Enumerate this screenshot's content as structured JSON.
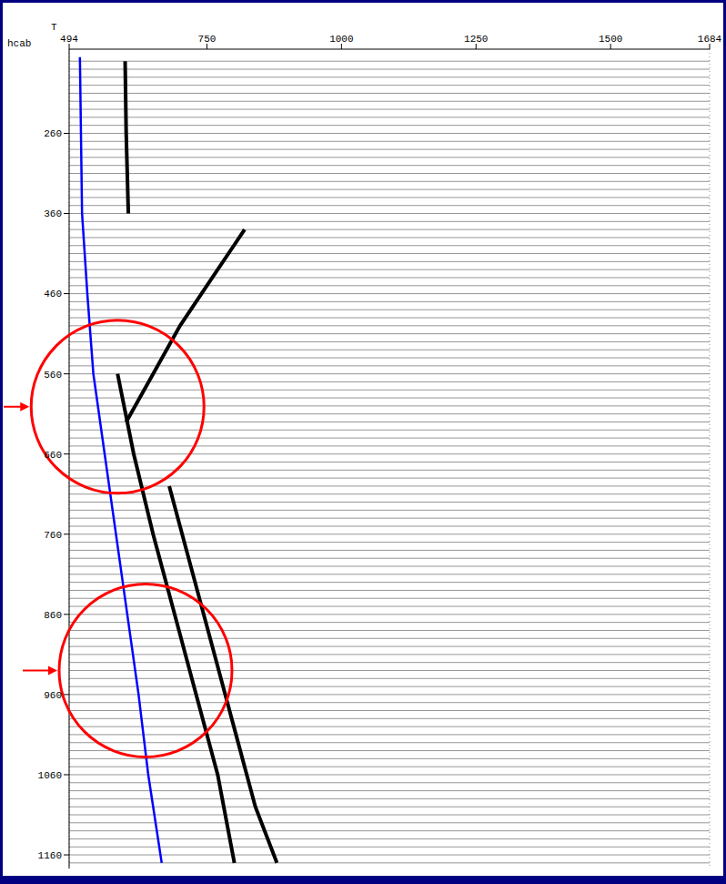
{
  "chart_data": {
    "type": "line",
    "x_label": "T",
    "y_label": "hcab",
    "xlim": [
      494,
      1684
    ],
    "xticks": [
      494,
      750,
      1000,
      1250,
      1500,
      1684
    ],
    "ylim": [
      155,
      1177
    ],
    "yticks": [
      260,
      360,
      460,
      560,
      660,
      760,
      860,
      960,
      1060,
      1160
    ],
    "grid": true,
    "series": [
      {
        "color": "#0000ff",
        "line_style": "solid",
        "marker": "none",
        "x": [
          514,
          518,
          528,
          539,
          560,
          581,
          602,
          623,
          641,
          666
        ],
        "y": [
          165,
          360,
          462,
          560,
          660,
          760,
          860,
          960,
          1060,
          1170
        ]
      },
      {
        "color": "#000000",
        "line_style": "solid",
        "marker": "none",
        "x": [
          598,
          600,
          604
        ],
        "y": [
          170,
          260,
          360
        ]
      },
      {
        "color": "#000000",
        "line_style": "solid",
        "marker": "none",
        "x": [
          584,
          614,
          650,
          690,
          730,
          770,
          801
        ],
        "y": [
          560,
          660,
          760,
          860,
          960,
          1060,
          1170
        ]
      },
      {
        "color": "#000000",
        "line_style": "solid",
        "marker": "none",
        "x": [
          680,
          720,
          760,
          800,
          840,
          880
        ],
        "y": [
          700,
          800,
          900,
          1000,
          1100,
          1170
        ]
      },
      {
        "color": "#000000",
        "line_style": "solid",
        "marker": "none",
        "x": [
          600,
          650,
          700,
          760,
          820
        ],
        "y": [
          620,
          560,
          500,
          440,
          380
        ]
      }
    ],
    "highlights": [
      {
        "x": 584,
        "y": 601,
        "color": "#ff0000"
      },
      {
        "x": 636,
        "y": 930,
        "color": "#ff0000"
      }
    ],
    "trace_depths": [
      170,
      180,
      190,
      200,
      210,
      220,
      230,
      240,
      250,
      260,
      270,
      280,
      290,
      300,
      310,
      320,
      330,
      340,
      350,
      360,
      370,
      380,
      390,
      400,
      410,
      420,
      430,
      440,
      450,
      460,
      470,
      480,
      490,
      500,
      510,
      520,
      530,
      540,
      550,
      560,
      570,
      580,
      590,
      600,
      610,
      620,
      630,
      640,
      650,
      660,
      670,
      680,
      690,
      700,
      710,
      720,
      730,
      740,
      750,
      760,
      770,
      780,
      790,
      800,
      810,
      820,
      830,
      840,
      850,
      860,
      870,
      880,
      890,
      900,
      910,
      920,
      930,
      940,
      950,
      960,
      970,
      980,
      990,
      1000,
      1010,
      1020,
      1030,
      1040,
      1050,
      1060,
      1070,
      1080,
      1090,
      1100,
      1110,
      1120,
      1130,
      1140,
      1150,
      1160,
      1170
    ]
  }
}
